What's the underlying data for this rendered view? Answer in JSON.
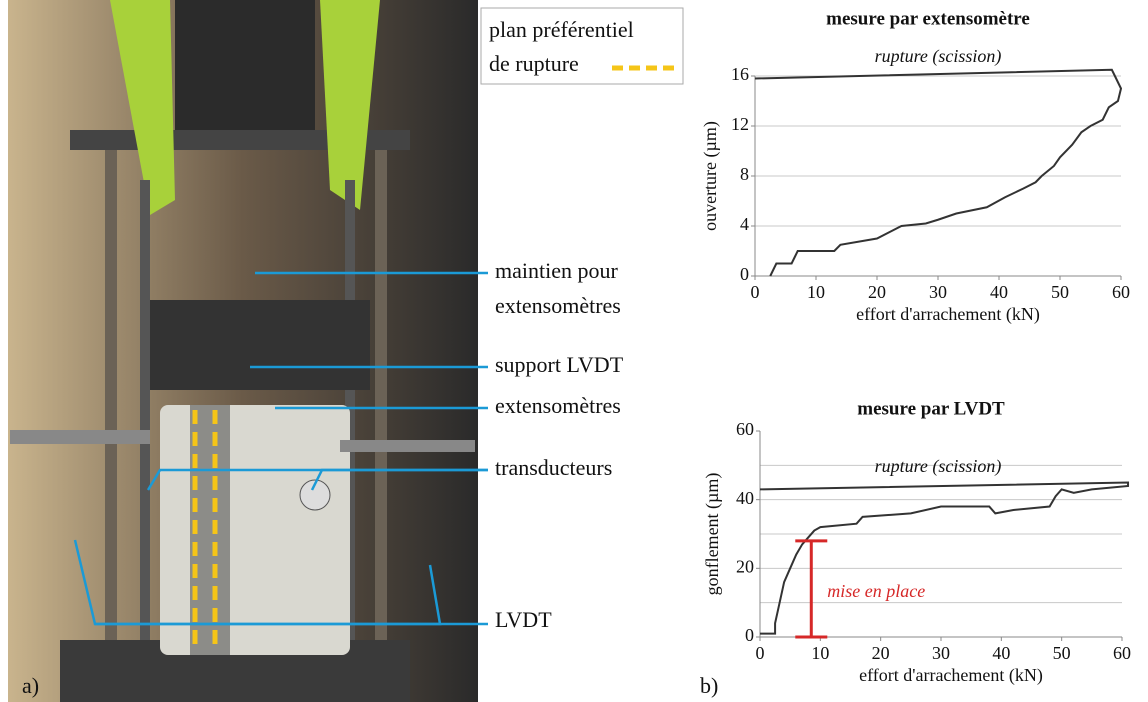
{
  "figure": {
    "panel_a": "a)",
    "panel_b": "b)",
    "legend": {
      "line1": "plan préférentiel",
      "line2": "de rupture"
    },
    "labels": [
      "maintien pour",
      "extensomètres",
      "support LVDT",
      "extensomètres",
      "transducteurs",
      "LVDT"
    ]
  },
  "chart_data": [
    {
      "type": "line",
      "title": "mesure par extensomètre",
      "annotation": "rupture (scission)",
      "x_label": "effort d'arrachement (kN)",
      "y_label": "ouverture (µm)",
      "xlim": [
        0,
        60
      ],
      "ylim": [
        0,
        16
      ],
      "xticks": [
        0,
        10,
        20,
        30,
        40,
        50,
        60
      ],
      "yticks": [
        0,
        4,
        8,
        12,
        16
      ],
      "ygrid": [
        4,
        8,
        12,
        16
      ],
      "grid": true,
      "series": [
        {
          "name": null,
          "color": "#333333",
          "x": [
            2.5,
            3,
            3.5,
            6,
            6.5,
            7,
            13,
            14,
            20,
            22,
            24,
            28,
            30,
            33,
            38,
            41,
            44,
            46,
            47,
            49,
            50,
            52,
            53.5,
            55,
            57,
            58,
            59.5,
            60,
            59,
            58.5,
            0
          ],
          "values": [
            0,
            0.5,
            1,
            1,
            1.5,
            2,
            2,
            2.5,
            3,
            3.5,
            4,
            4.2,
            4.5,
            5,
            5.5,
            6.3,
            7,
            7.5,
            8,
            8.8,
            9.5,
            10.5,
            11.5,
            12,
            12.5,
            13.5,
            14,
            15,
            16,
            16.5,
            15.8
          ]
        }
      ]
    },
    {
      "type": "line",
      "title": "mesure par LVDT",
      "annotation": "rupture (scission)",
      "x_label": "effort d'arrachement (kN)",
      "y_label": "gonflement (µm)",
      "xlim": [
        0,
        60
      ],
      "ylim": [
        0,
        60
      ],
      "xticks": [
        0,
        10,
        20,
        30,
        40,
        50,
        60
      ],
      "yticks": [
        0,
        20,
        40,
        60
      ],
      "ygrid": [
        10,
        20,
        30,
        40,
        50
      ],
      "grid": true,
      "series": [
        {
          "name": null,
          "color": "#333333",
          "x": [
            0,
            2.5,
            2.5,
            3,
            3.5,
            4,
            5,
            6,
            7,
            8,
            9,
            10,
            16,
            17,
            25,
            30,
            38,
            39,
            42,
            48,
            49,
            50,
            52,
            55,
            61,
            61,
            0
          ],
          "values": [
            1,
            1,
            4,
            8,
            12,
            16,
            20,
            24,
            27,
            29,
            31,
            32,
            33,
            35,
            36,
            38,
            38,
            36,
            37,
            38,
            41,
            43,
            42,
            43,
            44,
            45,
            43
          ]
        }
      ],
      "marker": {
        "label": "mise en place",
        "color": "#d62828",
        "x": 8.5,
        "from": 0,
        "to": 28
      }
    }
  ]
}
